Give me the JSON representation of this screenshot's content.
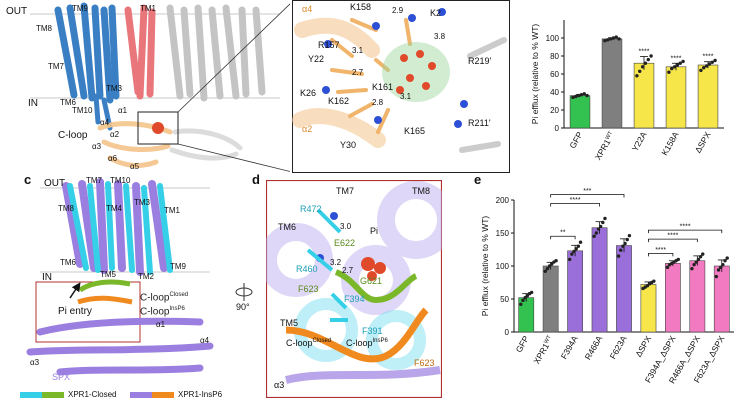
{
  "panels": {
    "c": {
      "letter": "c"
    },
    "d": {
      "letter": "d"
    },
    "e": {
      "letter": "e"
    }
  },
  "structure_labels": {
    "top_left": [
      "OUT",
      "TM9",
      "TM1",
      "TM8",
      "TM7",
      "TM3",
      "TM6",
      "TM10",
      "IN",
      "C-loop",
      "α1",
      "α4",
      "α2",
      "α3",
      "α6",
      "α5"
    ],
    "inset": [
      "α4",
      "R157",
      "K158",
      "2.9",
      "K2",
      "3.8",
      "Y22",
      "3.1",
      "R219'",
      "K26",
      "2.7",
      "K161",
      "K162",
      "2.8",
      "3.1",
      "α2",
      "Y30",
      "K165",
      "R211'"
    ],
    "c": [
      "OUT",
      "TM7",
      "TM10",
      "TM8",
      "TM4",
      "TM3",
      "TM1",
      "TM6",
      "TM2",
      "TM9",
      "TM5",
      "IN",
      "C-loop",
      "Closed",
      "C-loop",
      "InsP6",
      "Pi entry",
      "α1",
      "α4",
      "α3",
      "SPX",
      "XPR1-Closed",
      "XPR1-InsP6"
    ],
    "d": [
      "TM7",
      "TM8",
      "R472",
      "TM6",
      "3.0",
      "E622",
      "Pi",
      "R460",
      "3.2",
      "2.7",
      "G621",
      "F623",
      "F394",
      "F391",
      "TM5",
      "C-loop",
      "Closed",
      "C-loop",
      "InsP6",
      "F623",
      "α3"
    ],
    "rotation": "90°"
  },
  "chart_data": [
    {
      "type": "bar",
      "title": "",
      "ylabel": "Pi efflux (relative to % WT)",
      "ylim": [
        0,
        120
      ],
      "yticks": [
        "0",
        "20",
        "40",
        "60",
        "80",
        "100"
      ],
      "categories": [
        "GFP",
        "XPR1",
        "Y22A",
        "K158A",
        "ΔSPX"
      ],
      "category_superscripts": [
        "",
        "WT",
        "",
        "",
        ""
      ],
      "values": [
        36,
        99,
        72,
        68,
        70
      ],
      "colors": [
        "#33c24f",
        "#7f7f7f",
        "#f7e64a",
        "#f7e64a",
        "#f7e64a"
      ],
      "points": [
        [
          34,
          35,
          36,
          37,
          38,
          36
        ],
        [
          97,
          98,
          99,
          100,
          101,
          99
        ],
        [
          58,
          63,
          68,
          72,
          76,
          80
        ],
        [
          62,
          66,
          68,
          70,
          72,
          74
        ],
        [
          64,
          67,
          69,
          71,
          73,
          75
        ]
      ],
      "significance": [
        "",
        "",
        "****",
        "****",
        "****"
      ]
    },
    {
      "type": "bar",
      "title": "",
      "ylabel": "Pi efflux (relative to % WT)",
      "ylim": [
        0,
        200
      ],
      "yticks": [
        "0",
        "50",
        "100",
        "150",
        "200"
      ],
      "categories": [
        "GFP",
        "XPR1",
        "F394A",
        "R466A",
        "F623A",
        "ΔSPX",
        "F394A_ΔSPX",
        "R466A_ΔSPX",
        "F623A_ΔSPX"
      ],
      "category_superscripts": [
        "",
        "WT",
        "",
        "",
        "",
        "",
        "",
        "",
        ""
      ],
      "values": [
        52,
        100,
        123,
        158,
        131,
        72,
        104,
        108,
        100
      ],
      "colors": [
        "#33c24f",
        "#7f7f7f",
        "#9b6fd9",
        "#9b6fd9",
        "#9b6fd9",
        "#f7e64a",
        "#f27ac0",
        "#f27ac0",
        "#f27ac0"
      ],
      "points": [
        [
          42,
          48,
          52,
          55,
          58,
          60
        ],
        [
          92,
          96,
          100,
          103,
          106,
          108
        ],
        [
          110,
          118,
          122,
          126,
          130,
          136
        ],
        [
          145,
          150,
          156,
          160,
          166,
          172
        ],
        [
          115,
          124,
          130,
          134,
          140,
          146
        ],
        [
          66,
          68,
          70,
          73,
          75,
          77
        ],
        [
          98,
          102,
          104,
          106,
          108,
          110
        ],
        [
          96,
          102,
          106,
          110,
          114,
          118
        ],
        [
          84,
          94,
          98,
          102,
          108,
          112
        ]
      ],
      "brackets": [
        {
          "from": 1,
          "to": 2,
          "label": "**"
        },
        {
          "from": 1,
          "to": 3,
          "label": "****"
        },
        {
          "from": 1,
          "to": 4,
          "label": "***"
        },
        {
          "from": 5,
          "to": 6,
          "label": "****"
        },
        {
          "from": 5,
          "to": 7,
          "label": "****"
        },
        {
          "from": 5,
          "to": 8,
          "label": "****"
        }
      ]
    }
  ],
  "colors": {
    "blue": "#3a7fc4",
    "red": "#e8767a",
    "grey": "#bdbdbd",
    "cyan": "#35d0e8",
    "purple": "#9b7fe0",
    "green": "#7ab82a",
    "orange": "#f08a1e",
    "tan": "#f3c48a"
  }
}
